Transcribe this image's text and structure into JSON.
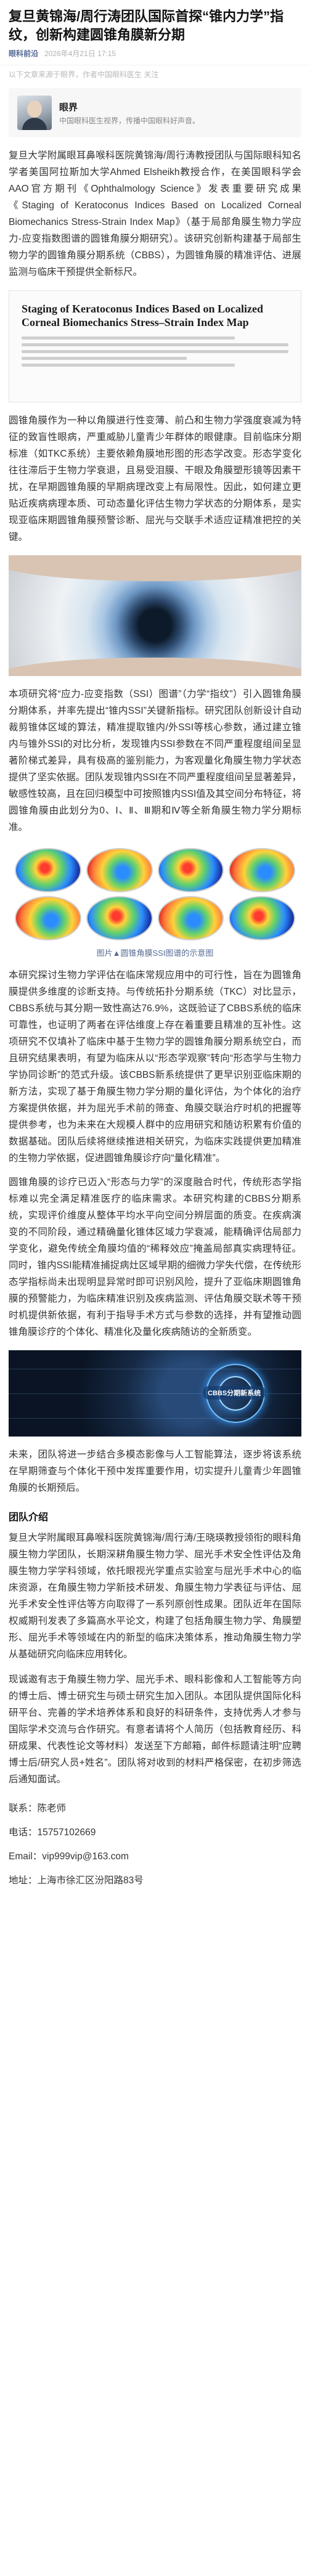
{
  "article": {
    "title": "复旦黄锦海/周行涛团队国际首探“锥内力学”指纹，创新构建圆锥角膜新分期",
    "source": "眼科前沿",
    "time": "2026年4月21日 17:15"
  },
  "disclaimer": "以下文章来源于眼界，作者中国眼科医生 关注",
  "author": {
    "name": "眼界",
    "role": "中国眼科医生视界，传播中国眼科好声音。"
  },
  "intro": "复旦大学附属眼耳鼻喉科医院黄锦海/周行涛教授团队与国际眼科知名学者美国阿拉斯加大学Ahmed Elsheikh教授合作，在美国眼科学会AAO官方期刊《Ophthalmology Science》发表重要研究成果《Staging of Keratoconus Indices Based on Localized Corneal Biomechanics Stress-Strain Index Map》（基于局部角膜生物力学应力-应变指数图谱的圆锥角膜分期研究）。该研究创新构建基于局部生物力学的圆锥角膜分期系统（CBBS），为圆锥角膜的精准评估、进展监测与临床干预提供全新标尺。",
  "figure1": {
    "paper_title": "Staging of Keratoconus Indices Based on Localized Corneal Biomechanics Stress–Strain Index Map"
  },
  "para2": "圆锥角膜作为一种以角膜进行性变薄、前凸和生物力学强度衰减为特征的致盲性眼病，严重威胁儿童青少年群体的眼健康。目前临床分期标准（如TKC系统）主要依赖角膜地形图的形态学改变。形态学变化往往滞后于生物力学衰退，且易受泪膜、干眼及角膜塑形镜等因素干扰，在早期圆锥角膜的早期病理改变上有局限性。因此，如何建立更贴近疾病病理本质、可动态量化评估生物力学状态的分期体系，是实现亚临床期圆锥角膜预警诊断、屈光与交联手术适应证精准把控的关键。",
  "para3": "本项研究将“应力-应变指数（SSI）图谱”（力学“指纹”）引入圆锥角膜分期体系，并率先提出“锥内SSI”关键新指标。研究团队创新设计自动裁剪锥体区域的算法，精准提取锥内/外SSI等核心参数，通过建立锥内与锥外SSI的对比分析，发现锥内SSI参数在不同严重程度组间呈显著阶梯式差异，具有极高的鉴别能力，为客观量化角膜生物力学状态提供了坚实依据。团队发现锥内SSI在不同严重程度组间呈显著差异，敏感性较高，且在回归模型中可按照锥内SSI值及其空间分布特征，将圆锥角膜由此划分为0、Ⅰ、Ⅱ、Ⅲ期和Ⅳ等全新角膜生物力学分期标准。",
  "figure2": {
    "caption": "图片▲圆锥角膜SSI图谱的示意图"
  },
  "para4": "本研究探讨生物力学评估在临床常规应用中的可行性，旨在为圆锥角膜提供多维度的诊断支持。与传统拓扑分期系统（TKC）对比显示，CBBS系统与其分期一致性高达76.9%，这既验证了CBBS系统的临床可靠性，也证明了两者在评估维度上存在着重要且精准的互补性。这项研究不仅填补了临床中基于生物力学的圆锥角膜分期系统空白，而且研究结果表明，有望为临床从以“形态学观察”转向“形态学与生物力学协同诊断”的范式升级。该CBBS新系统提供了更早识别亚临床期的新方法，实现了基于角膜生物力学分期的量化评估，为个体化的治疗方案提供依据，并为屈光手术前的筛查、角膜交联治疗时机的把握等提供参考，也为未来在大规模人群中的应用研究和随访积累有价值的数据基础。团队后续将继续推进相关研究，为临床实践提供更加精准的生物力学依据，促进圆锥角膜诊疗向“量化精准”。",
  "para5": "圆锥角膜的诊疗已迈入“形态与力学”的深度融合时代，传统形态学指标难以完全满足精准医疗的临床需求。本研究构建的CBBS分期系统，实现评价维度从整体平均水平向空间分辨层面的质变。在疾病演变的不同阶段，通过精确量化锥体区域力学衰减，能精确评估局部力学变化，避免传统全角膜均值的“稀释效应”掩盖局部真实病理特征。同时，锥内SSI能精准捕捉病灶区域早期的细微力学失代偿，在传统形态学指标尚未出现明显异常时即可识别风险，提升了亚临床期圆锥角膜的预警能力，为临床精准识别及疾病监测、评估角膜交联术等干预时机提供新依据，有利于指导手术方式与参数的选择，并有望推动圆锥角膜诊疗的个体化、精准化及量化疾病随访的全新质变。",
  "figure3": {
    "badge": "CBBS分期新系统"
  },
  "para6": "未来，团队将进一步结合多模态影像与人工智能算法，逐步将该系统在早期筛查与个体化干预中发挥重要作用，切实提升儿童青少年圆锥角膜的长期预后。",
  "team": {
    "heading": "团队介绍",
    "body": "复旦大学附属眼耳鼻喉科医院黄锦海/周行涛/王晓瑛教授领衔的眼科角膜生物力学团队，长期深耕角膜生物力学、屈光手术安全性评估及角膜生物力学学科领域，依托眼视光学重点实验室与屈光手术中心的临床资源，在角膜生物力学新技术研发、角膜生物力学表征与评估、屈光手术安全性评估等方向取得了一系列原创性成果。团队近年在国际权威期刊发表了多篇高水平论文，构建了包括角膜生物力学、角膜塑形、屈光手术等领域在内的新型的临床决策体系，推动角膜生物力学从基础研究向临床应用转化。"
  },
  "para7": "现诚邀有志于角膜生物力学、屈光手术、眼科影像和人工智能等方向的博士后、博士研究生与硕士研究生加入团队。本团队提供国际化科研平台、完善的学术培养体系和良好的科研条件，支持优秀人才参与国际学术交流与合作研究。有意者请将个人简历（包括教育经历、科研成果、代表性论文等材料）发送至下方邮箱，邮件标题请注明“应聘博士后/研究人员+姓名”。团队将对收到的材料严格保密，在初步筛选后通知面试。",
  "contact": {
    "contact_line": "联系：陈老师",
    "phone_line": "电话：15757102669",
    "email_line": "Email：vip999vip@163.com",
    "address_line": "地址：上海市徐汇区汾阳路83号"
  }
}
